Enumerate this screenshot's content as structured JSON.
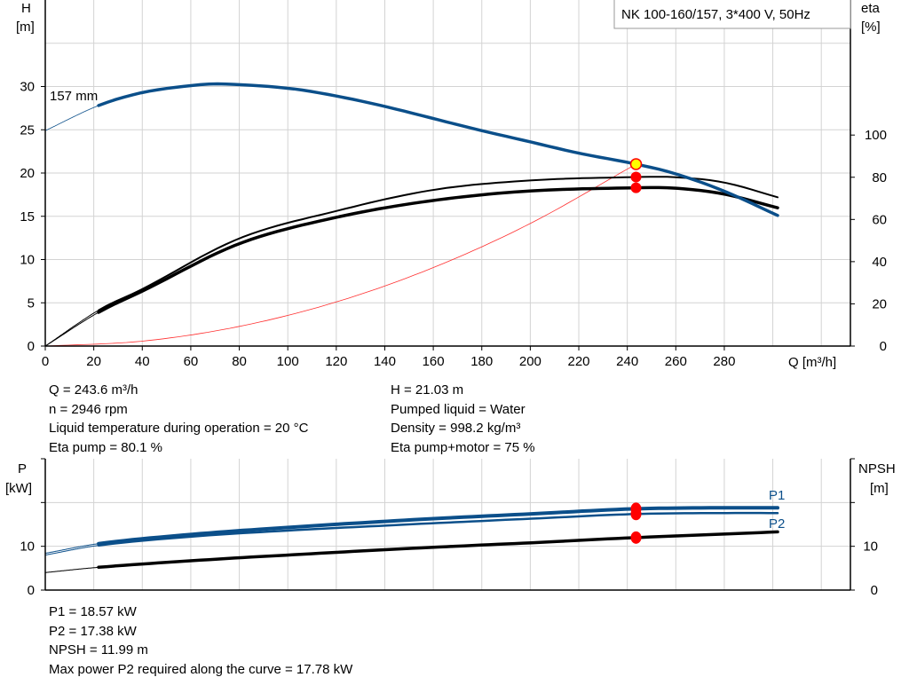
{
  "legend_title": "NK 100-160/157, 3*400 V, 50Hz",
  "info_top_left": [
    "Q = 243.6 m³/h",
    "n = 2946 rpm",
    "Liquid temperature during operation = 20 °C",
    "Eta pump = 80.1 %"
  ],
  "info_top_right": [
    "H = 21.03 m",
    "Pumped liquid = Water",
    "Density = 998.2 kg/m³",
    "Eta pump+motor = 75 %"
  ],
  "info_bottom": [
    "P1 = 18.57 kW",
    "P2 = 17.38 kW",
    "NPSH = 11.99 m",
    "Max power P2 required along the curve = 17.78 kW"
  ],
  "colors": {
    "head": "#0b4f8a",
    "power": "#0b4f8a",
    "eta": "#000000",
    "npsh": "#000000",
    "system": "#ff3030",
    "duty_point": "#ff0000",
    "duty_head_fill": "#ffff00",
    "grid": "#d3d3d3"
  },
  "chart_data": [
    {
      "type": "line",
      "xlabel": "Q [m³/h]",
      "ylabel": [
        "H",
        "[m]"
      ],
      "y2label": [
        "eta",
        "[%]"
      ],
      "xlim": [
        0,
        332
      ],
      "ylim": [
        0,
        40
      ],
      "y2lim": [
        0,
        164
      ],
      "grid": true,
      "x_ticks": [
        0,
        20,
        40,
        60,
        80,
        100,
        120,
        140,
        160,
        180,
        200,
        220,
        240,
        260,
        280
      ],
      "y_ticks": [
        0,
        5,
        10,
        15,
        20,
        25,
        30
      ],
      "y2_ticks": [
        0,
        20,
        40,
        60,
        80,
        100
      ],
      "operating_range_q": [
        22,
        302
      ],
      "series": [
        {
          "name": "157 mm",
          "axis": "H",
          "x": [
            0,
            22,
            40,
            60,
            72,
            100,
            120,
            140,
            160,
            180,
            200,
            220,
            243.6,
            260,
            280,
            302
          ],
          "y": [
            24.9,
            27.8,
            29.3,
            30.1,
            30.3,
            29.8,
            28.9,
            27.7,
            26.3,
            24.9,
            23.6,
            22.3,
            21.03,
            19.9,
            17.9,
            15.1
          ]
        },
        {
          "axis": "eta",
          "x": [
            0,
            22,
            40,
            80,
            120,
            160,
            200,
            243.6,
            260,
            280,
            302
          ],
          "y": [
            0,
            17,
            27,
            51,
            64,
            74,
            78.5,
            80.1,
            80,
            77.5,
            70.5
          ]
        },
        {
          "axis": "eta",
          "x": [
            0,
            22,
            40,
            80,
            120,
            160,
            200,
            243.6,
            260,
            280,
            302
          ],
          "y": [
            0,
            16,
            26,
            48.5,
            61,
            69,
            73.5,
            75,
            74.8,
            72,
            65.5
          ]
        },
        {
          "axis": "H",
          "system_curve": true,
          "x": [
            0,
            40,
            80,
            120,
            160,
            200,
            243.6
          ],
          "y": [
            0,
            0.57,
            2.27,
            5.1,
            9.07,
            14.17,
            21.03
          ]
        }
      ],
      "duty_points": [
        {
          "axis": "H",
          "x": 243.6,
          "y": 21.03
        },
        {
          "axis": "eta",
          "x": 243.6,
          "y": 80.1
        },
        {
          "axis": "eta",
          "x": 243.6,
          "y": 75
        }
      ]
    },
    {
      "type": "line",
      "ylabel": [
        "P",
        "[kW]"
      ],
      "y2label": [
        "NPSH",
        "[m]"
      ],
      "xlim": [
        0,
        332
      ],
      "ylim": [
        0,
        30
      ],
      "grid": true,
      "y_ticks": [
        0,
        10
      ],
      "y2_ticks": [
        0,
        10
      ],
      "series": [
        {
          "name": "P1",
          "x": [
            0,
            22,
            60,
            100,
            150,
            200,
            243.6,
            280,
            302
          ],
          "y": [
            8.4,
            10.6,
            12.7,
            14.3,
            16.0,
            17.4,
            18.57,
            18.8,
            18.8
          ]
        },
        {
          "name": "P2",
          "x": [
            0,
            22,
            60,
            100,
            150,
            200,
            243.6,
            280,
            302
          ],
          "y": [
            8.0,
            10.2,
            12.2,
            13.6,
            15.0,
            16.3,
            17.38,
            17.6,
            17.6
          ]
        },
        {
          "name": "NPSH",
          "x": [
            0,
            22,
            60,
            100,
            150,
            200,
            243.6,
            280,
            302
          ],
          "y": [
            4.0,
            5.2,
            6.7,
            8.0,
            9.5,
            10.8,
            11.99,
            12.8,
            13.3
          ]
        }
      ],
      "duty_points": [
        {
          "x": 243.6,
          "y": 18.57
        },
        {
          "x": 243.6,
          "y": 17.38
        },
        {
          "x": 243.6,
          "y": 11.99
        }
      ]
    }
  ]
}
